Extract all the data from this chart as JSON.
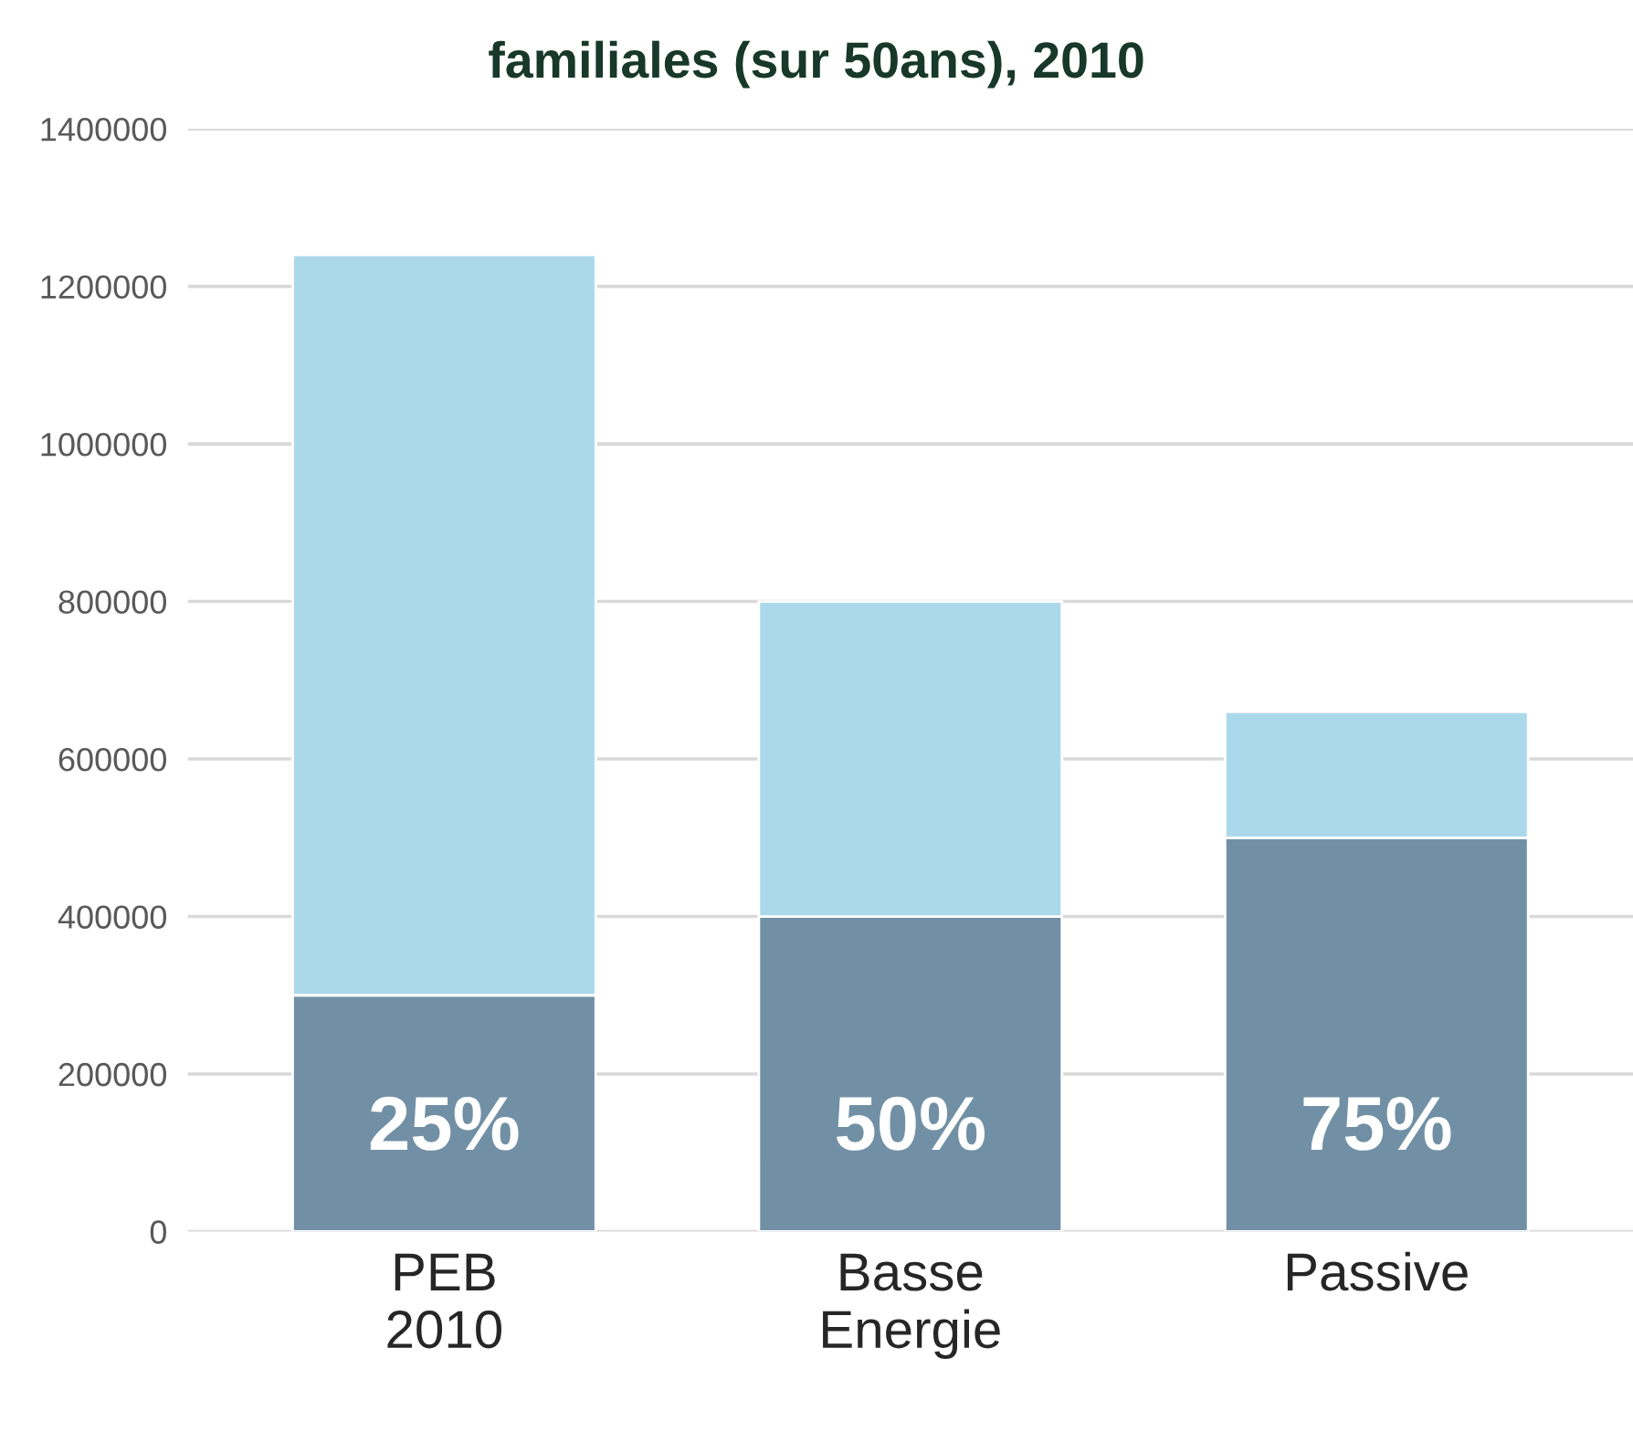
{
  "chart_data": {
    "type": "bar",
    "title": "familiales (sur 50ans), 2010",
    "stacked": true,
    "categories": [
      "PEB\n2010",
      "Basse\nEnergie",
      "Passive"
    ],
    "series": [
      {
        "color": "#7190a5",
        "values": [
          300000,
          400000,
          500000
        ]
      },
      {
        "color": "#abd9eb",
        "values": [
          940000,
          400000,
          160000
        ]
      }
    ],
    "ylim": [
      0,
      1400000
    ],
    "yticks": [
      0,
      200000,
      400000,
      600000,
      800000,
      1000000,
      1200000,
      1400000
    ],
    "grid": "y",
    "annotations": [
      "25%",
      "50%",
      "75%"
    ]
  }
}
